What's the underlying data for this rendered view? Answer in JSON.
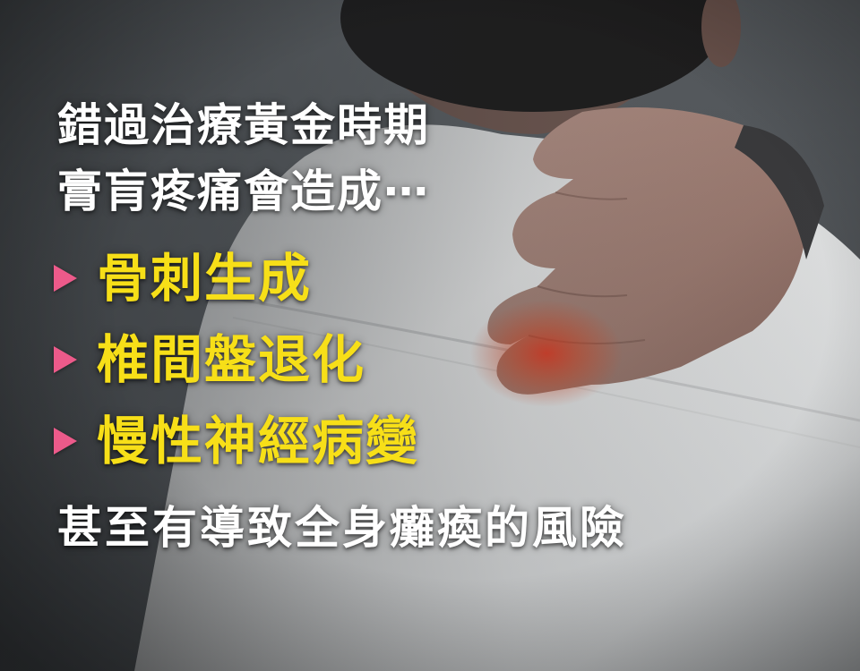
{
  "headline": {
    "line1": "錯過治療黃金時期",
    "line2": "膏肓疼痛會造成⋯"
  },
  "bullets": [
    {
      "text": "骨刺生成",
      "marker_icon": "triangle-right-icon"
    },
    {
      "text": "椎間盤退化",
      "marker_icon": "triangle-right-icon"
    },
    {
      "text": "慢性神經病變",
      "marker_icon": "triangle-right-icon"
    }
  ],
  "footer": {
    "line": "甚至有導致全身癱瘓的風險"
  },
  "colors": {
    "headline_text": "#ffffff",
    "bullet_text": "#f7df18",
    "bullet_marker": "#ec5a8a",
    "pain_glow": "#e2371f",
    "background": "#5b6064",
    "shirt": "#e9eaea"
  }
}
